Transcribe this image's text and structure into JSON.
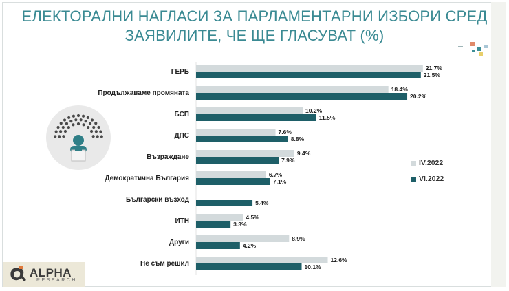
{
  "title_lines": [
    "ЕЛЕКТОРАЛНИ НАГЛАСИ ЗА ПАРЛАМЕНТАРНИ ИЗБОРИ СРЕД",
    "ЗАЯВИЛИТЕ, ЧЕ ЩЕ ГЛАСУВАТ (%)"
  ],
  "logo": {
    "name": "ALPHA",
    "sub": "RESEARCH"
  },
  "colors": {
    "title": "#3a8a93",
    "series_1": "#d3dadc",
    "series_2": "#1e5f68",
    "text": "#222222"
  },
  "chart_data": {
    "type": "bar",
    "orientation": "horizontal",
    "title": "ЕЛЕКТОРАЛНИ НАГЛАСИ ЗА ПАРЛАМЕНТАРНИ ИЗБОРИ СРЕД ЗАЯВИЛИТЕ, ЧЕ ЩЕ ГЛАСУВАТ (%)",
    "categories": [
      "ГЕРБ",
      "Продължаваме промяната",
      "БСП",
      "ДПС",
      "Възраждане",
      "Демократична България",
      "Български възход",
      "ИТН",
      "Други",
      "Не съм решил"
    ],
    "series": [
      {
        "name": "IV.2022",
        "values": [
          21.7,
          18.4,
          10.2,
          7.6,
          9.4,
          6.7,
          null,
          4.5,
          8.9,
          12.6
        ]
      },
      {
        "name": "VI.2022",
        "values": [
          21.5,
          20.2,
          11.5,
          8.8,
          7.9,
          7.1,
          5.4,
          3.3,
          4.2,
          10.1
        ]
      }
    ],
    "value_labels": [
      [
        "21.7%",
        "18.4%",
        "10.2%",
        "7.6%",
        "9.4%",
        "6.7%",
        "",
        "4.5%",
        "8.9%",
        "12.6%"
      ],
      [
        "21.5%",
        "20.2%",
        "11.5%",
        "8.8%",
        "7.9%",
        "7.1%",
        "5.4%",
        "3.3%",
        "4.2%",
        "10.1%"
      ]
    ],
    "xlim": [
      0,
      25
    ],
    "grid": false,
    "legend_position": "right"
  }
}
